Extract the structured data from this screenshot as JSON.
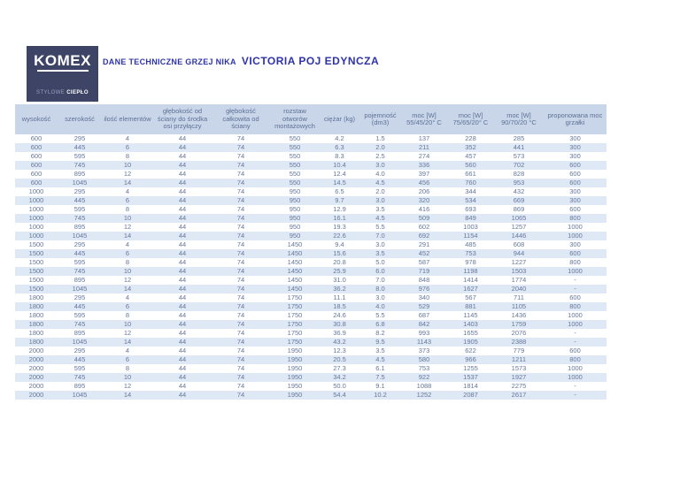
{
  "logo": {
    "name": "KOMEX",
    "tagline_light": "STYLOWE",
    "tagline_bold": "CIEPŁO"
  },
  "header": {
    "title_prefix": "DANE TECHNICZNE GRZEJ NIKA",
    "title_product": "VICTORIA POJ EDYNCZA"
  },
  "colors": {
    "logo_bg": "#3d4466",
    "title_text": "#2e34a7",
    "table_header_bg": "#c9d6ea",
    "table_row_alt_bg": "#dfe8f5",
    "table_text": "#64779c"
  },
  "table": {
    "columns": [
      "wysokość",
      "szerokość",
      "ilość elementów",
      "głębokość od ściany do środka osi przyłączy",
      "głębokość całkowita od ściany",
      "rozstaw otworów montażowych",
      "ciężar (kg)",
      "pojemność (dm3)",
      "moc [W] 55/45/20° C",
      "moc [W] 75/65/20° C",
      "moc [W] 90/70/20 °C",
      "proponowana moc grzałki"
    ],
    "rows": [
      [
        "600",
        "295",
        "4",
        "44",
        "74",
        "550",
        "4.2",
        "1.5",
        "137",
        "228",
        "285",
        "300"
      ],
      [
        "600",
        "445",
        "6",
        "44",
        "74",
        "550",
        "6.3",
        "2.0",
        "211",
        "352",
        "441",
        "300"
      ],
      [
        "600",
        "595",
        "8",
        "44",
        "74",
        "550",
        "8.3",
        "2.5",
        "274",
        "457",
        "573",
        "300"
      ],
      [
        "600",
        "745",
        "10",
        "44",
        "74",
        "550",
        "10.4",
        "3.0",
        "336",
        "560",
        "702",
        "600"
      ],
      [
        "600",
        "895",
        "12",
        "44",
        "74",
        "550",
        "12.4",
        "4.0",
        "397",
        "661",
        "828",
        "600"
      ],
      [
        "600",
        "1045",
        "14",
        "44",
        "74",
        "550",
        "14.5",
        "4.5",
        "456",
        "760",
        "953",
        "600"
      ],
      [
        "1000",
        "295",
        "4",
        "44",
        "74",
        "950",
        "6.5",
        "2.0",
        "206",
        "344",
        "432",
        "300"
      ],
      [
        "1000",
        "445",
        "6",
        "44",
        "74",
        "950",
        "9.7",
        "3.0",
        "320",
        "534",
        "669",
        "300"
      ],
      [
        "1000",
        "595",
        "8",
        "44",
        "74",
        "950",
        "12.9",
        "3.5",
        "416",
        "693",
        "869",
        "600"
      ],
      [
        "1000",
        "745",
        "10",
        "44",
        "74",
        "950",
        "16.1",
        "4.5",
        "509",
        "849",
        "1065",
        "800"
      ],
      [
        "1000",
        "895",
        "12",
        "44",
        "74",
        "950",
        "19.3",
        "5.5",
        "602",
        "1003",
        "1257",
        "1000"
      ],
      [
        "1000",
        "1045",
        "14",
        "44",
        "74",
        "950",
        "22.6",
        "7.0",
        "692",
        "1154",
        "1446",
        "1000"
      ],
      [
        "1500",
        "295",
        "4",
        "44",
        "74",
        "1450",
        "9.4",
        "3.0",
        "291",
        "485",
        "608",
        "300"
      ],
      [
        "1500",
        "445",
        "6",
        "44",
        "74",
        "1450",
        "15.6",
        "3.5",
        "452",
        "753",
        "944",
        "600"
      ],
      [
        "1500",
        "595",
        "8",
        "44",
        "74",
        "1450",
        "20.8",
        "5.0",
        "587",
        "978",
        "1227",
        "800"
      ],
      [
        "1500",
        "745",
        "10",
        "44",
        "74",
        "1450",
        "25.9",
        "6.0",
        "719",
        "1198",
        "1503",
        "1000"
      ],
      [
        "1500",
        "895",
        "12",
        "44",
        "74",
        "1450",
        "31.0",
        "7.0",
        "848",
        "1414",
        "1774",
        "-"
      ],
      [
        "1500",
        "1045",
        "14",
        "44",
        "74",
        "1450",
        "36.2",
        "8.0",
        "976",
        "1627",
        "2040",
        "-"
      ],
      [
        "1800",
        "295",
        "4",
        "44",
        "74",
        "1750",
        "11.1",
        "3.0",
        "340",
        "567",
        "711",
        "600"
      ],
      [
        "1800",
        "445",
        "6",
        "44",
        "74",
        "1750",
        "18.5",
        "4.0",
        "529",
        "881",
        "1105",
        "800"
      ],
      [
        "1800",
        "595",
        "8",
        "44",
        "74",
        "1750",
        "24.6",
        "5.5",
        "687",
        "1145",
        "1436",
        "1000"
      ],
      [
        "1800",
        "745",
        "10",
        "44",
        "74",
        "1750",
        "30.8",
        "6.8",
        "842",
        "1403",
        "1759",
        "1000"
      ],
      [
        "1800",
        "895",
        "12",
        "44",
        "74",
        "1750",
        "36.9",
        "8.2",
        "993",
        "1655",
        "2076",
        "-"
      ],
      [
        "1800",
        "1045",
        "14",
        "44",
        "74",
        "1750",
        "43.2",
        "9.5",
        "1143",
        "1905",
        "2388",
        "-"
      ],
      [
        "2000",
        "295",
        "4",
        "44",
        "74",
        "1950",
        "12.3",
        "3.5",
        "373",
        "622",
        "779",
        "600"
      ],
      [
        "2000",
        "445",
        "6",
        "44",
        "74",
        "1950",
        "20.5",
        "4.5",
        "580",
        "966",
        "1211",
        "800"
      ],
      [
        "2000",
        "595",
        "8",
        "44",
        "74",
        "1950",
        "27.3",
        "6.1",
        "753",
        "1255",
        "1573",
        "1000"
      ],
      [
        "2000",
        "745",
        "10",
        "44",
        "74",
        "1950",
        "34.2",
        "7.5",
        "922",
        "1537",
        "1927",
        "1000"
      ],
      [
        "2000",
        "895",
        "12",
        "44",
        "74",
        "1950",
        "50.0",
        "9.1",
        "1088",
        "1814",
        "2275",
        "-"
      ],
      [
        "2000",
        "1045",
        "14",
        "44",
        "74",
        "1950",
        "54.4",
        "10.2",
        "1252",
        "2087",
        "2617",
        "-"
      ]
    ]
  }
}
